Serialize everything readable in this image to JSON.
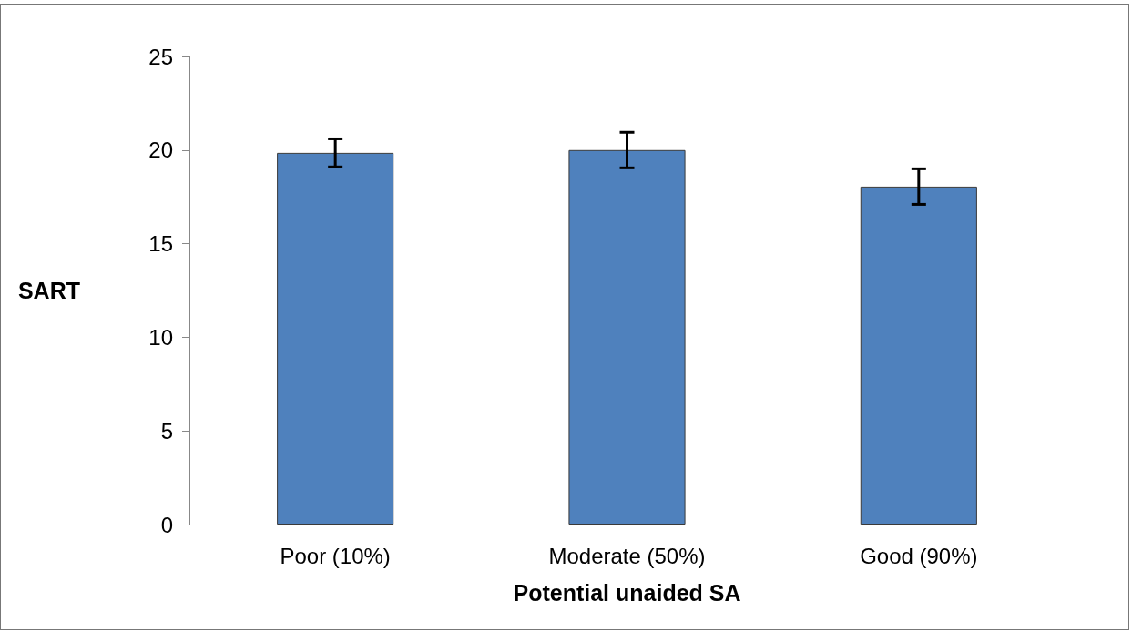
{
  "chart_data": {
    "type": "bar",
    "xlabel": "Potential unaided SA",
    "ylabel": "SART",
    "categories": [
      "Poor (10%)",
      "Moderate (50%)",
      "Good (90%)"
    ],
    "values": [
      19.85,
      20.0,
      18.05
    ],
    "errors": [
      0.75,
      0.95,
      0.95
    ],
    "color": "#4f81bd",
    "ylim": [
      0,
      25
    ],
    "yticks": [
      0,
      5,
      10,
      15,
      20,
      25
    ],
    "grid": false
  }
}
